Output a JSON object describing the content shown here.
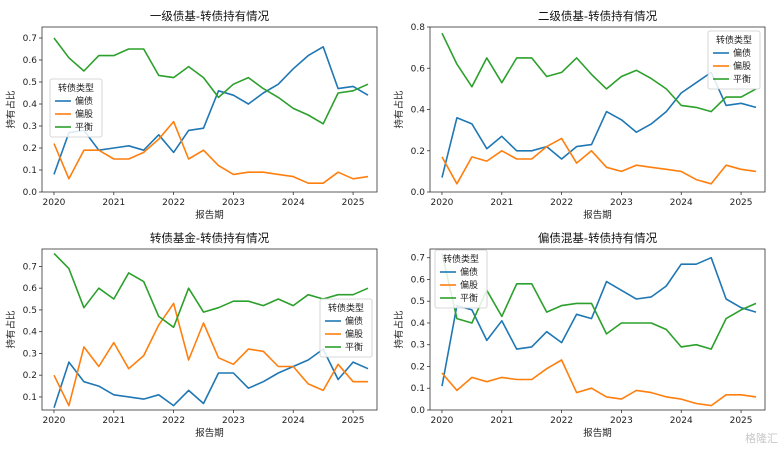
{
  "colors": {
    "偏债": "#1f77b4",
    "偏股": "#ff7f0e",
    "平衡": "#2ca02c"
  },
  "watermark": "格隆汇",
  "chart_data": [
    {
      "type": "line",
      "title": "一级债基-转债持有情况",
      "xlabel": "报告期",
      "ylabel": "持有占比",
      "xlim": [
        2019.8,
        2025.4
      ],
      "ylim": [
        0,
        0.75
      ],
      "xticks": [
        "2020",
        "2021",
        "2022",
        "2023",
        "2024",
        "2025"
      ],
      "yticks": [
        "0.0",
        "0.1",
        "0.2",
        "0.3",
        "0.4",
        "0.5",
        "0.6",
        "0.7"
      ],
      "legend_title": "转债类型",
      "legend_position": "center-left",
      "x": [
        2020.0,
        2020.25,
        2020.5,
        2020.75,
        2021.0,
        2021.25,
        2021.5,
        2021.75,
        2022.0,
        2022.25,
        2022.5,
        2022.75,
        2023.0,
        2023.25,
        2023.5,
        2023.75,
        2024.0,
        2024.25,
        2024.5,
        2024.75,
        2025.0,
        2025.25
      ],
      "series": [
        {
          "name": "偏债",
          "values": [
            0.08,
            0.27,
            0.28,
            0.19,
            0.2,
            0.21,
            0.19,
            0.26,
            0.18,
            0.28,
            0.29,
            0.46,
            0.44,
            0.4,
            0.45,
            0.49,
            0.56,
            0.62,
            0.66,
            0.47,
            0.48,
            0.44
          ]
        },
        {
          "name": "偏股",
          "values": [
            0.22,
            0.06,
            0.19,
            0.19,
            0.15,
            0.15,
            0.18,
            0.24,
            0.32,
            0.15,
            0.19,
            0.12,
            0.08,
            0.09,
            0.09,
            0.08,
            0.07,
            0.04,
            0.04,
            0.09,
            0.06,
            0.07
          ]
        },
        {
          "name": "平衡",
          "values": [
            0.7,
            0.61,
            0.55,
            0.62,
            0.62,
            0.65,
            0.65,
            0.53,
            0.52,
            0.57,
            0.52,
            0.43,
            0.49,
            0.52,
            0.47,
            0.43,
            0.38,
            0.35,
            0.31,
            0.45,
            0.46,
            0.49
          ]
        }
      ]
    },
    {
      "type": "line",
      "title": "二级债基-转债持有情况",
      "xlabel": "报告期",
      "ylabel": "持有占比",
      "xlim": [
        2019.8,
        2025.4
      ],
      "ylim": [
        0,
        0.8
      ],
      "xticks": [
        "2020",
        "2021",
        "2022",
        "2023",
        "2024",
        "2025"
      ],
      "yticks": [
        "0.0",
        "0.2",
        "0.4",
        "0.6",
        "0.8"
      ],
      "legend_title": "转债类型",
      "legend_position": "upper-right",
      "x": [
        2020.0,
        2020.25,
        2020.5,
        2020.75,
        2021.0,
        2021.25,
        2021.5,
        2021.75,
        2022.0,
        2022.25,
        2022.5,
        2022.75,
        2023.0,
        2023.25,
        2023.5,
        2023.75,
        2024.0,
        2024.25,
        2024.5,
        2024.75,
        2025.0,
        2025.25
      ],
      "series": [
        {
          "name": "偏债",
          "values": [
            0.07,
            0.36,
            0.33,
            0.21,
            0.27,
            0.2,
            0.2,
            0.22,
            0.16,
            0.22,
            0.23,
            0.39,
            0.35,
            0.29,
            0.33,
            0.39,
            0.48,
            0.53,
            0.58,
            0.42,
            0.43,
            0.41
          ]
        },
        {
          "name": "偏股",
          "values": [
            0.17,
            0.04,
            0.17,
            0.15,
            0.2,
            0.16,
            0.16,
            0.22,
            0.26,
            0.14,
            0.2,
            0.12,
            0.1,
            0.13,
            0.12,
            0.11,
            0.1,
            0.06,
            0.04,
            0.13,
            0.11,
            0.1
          ]
        },
        {
          "name": "平衡",
          "values": [
            0.77,
            0.62,
            0.51,
            0.65,
            0.53,
            0.65,
            0.65,
            0.56,
            0.58,
            0.65,
            0.57,
            0.5,
            0.56,
            0.59,
            0.55,
            0.5,
            0.42,
            0.41,
            0.39,
            0.46,
            0.46,
            0.5
          ]
        }
      ]
    },
    {
      "type": "line",
      "title": "转债基金-转债持有情况",
      "xlabel": "报告期",
      "ylabel": "持有占比",
      "xlim": [
        2019.8,
        2025.4
      ],
      "ylim": [
        0.04,
        0.78
      ],
      "xticks": [
        "2020",
        "2021",
        "2022",
        "2023",
        "2024",
        "2025"
      ],
      "yticks": [
        "0.1",
        "0.2",
        "0.3",
        "0.4",
        "0.5",
        "0.6",
        "0.7"
      ],
      "legend_title": "转债类型",
      "legend_position": "center-right",
      "x": [
        2020.0,
        2020.25,
        2020.5,
        2020.75,
        2021.0,
        2021.25,
        2021.5,
        2021.75,
        2022.0,
        2022.25,
        2022.5,
        2022.75,
        2023.0,
        2023.25,
        2023.5,
        2023.75,
        2024.0,
        2024.25,
        2024.5,
        2024.75,
        2025.0,
        2025.25
      ],
      "series": [
        {
          "name": "偏债",
          "values": [
            0.05,
            0.26,
            0.17,
            0.15,
            0.11,
            0.1,
            0.09,
            0.11,
            0.06,
            0.13,
            0.07,
            0.21,
            0.21,
            0.14,
            0.17,
            0.21,
            0.24,
            0.27,
            0.32,
            0.18,
            0.26,
            0.23
          ]
        },
        {
          "name": "偏股",
          "values": [
            0.2,
            0.06,
            0.33,
            0.24,
            0.35,
            0.23,
            0.29,
            0.43,
            0.53,
            0.27,
            0.44,
            0.28,
            0.25,
            0.32,
            0.31,
            0.24,
            0.24,
            0.16,
            0.13,
            0.25,
            0.17,
            0.17
          ]
        },
        {
          "name": "平衡",
          "values": [
            0.76,
            0.69,
            0.51,
            0.6,
            0.55,
            0.67,
            0.63,
            0.47,
            0.42,
            0.6,
            0.49,
            0.51,
            0.54,
            0.54,
            0.52,
            0.55,
            0.52,
            0.57,
            0.55,
            0.57,
            0.57,
            0.6
          ]
        }
      ]
    },
    {
      "type": "line",
      "title": "偏债混基-转债持有情况",
      "xlabel": "报告期",
      "ylabel": "持有占比",
      "xlim": [
        2019.8,
        2025.4
      ],
      "ylim": [
        0,
        0.74
      ],
      "xticks": [
        "2020",
        "2021",
        "2022",
        "2023",
        "2024",
        "2025"
      ],
      "yticks": [
        "0.0",
        "0.1",
        "0.2",
        "0.3",
        "0.4",
        "0.5",
        "0.6",
        "0.7"
      ],
      "legend_title": "转债类型",
      "legend_position": "upper-left",
      "x": [
        2020.0,
        2020.25,
        2020.5,
        2020.75,
        2021.0,
        2021.25,
        2021.5,
        2021.75,
        2022.0,
        2022.25,
        2022.5,
        2022.75,
        2023.0,
        2023.25,
        2023.5,
        2023.75,
        2024.0,
        2024.25,
        2024.5,
        2024.75,
        2025.0,
        2025.25
      ],
      "series": [
        {
          "name": "偏债",
          "values": [
            0.11,
            0.48,
            0.46,
            0.32,
            0.41,
            0.28,
            0.29,
            0.36,
            0.31,
            0.44,
            0.42,
            0.59,
            0.55,
            0.51,
            0.52,
            0.57,
            0.67,
            0.67,
            0.7,
            0.51,
            0.47,
            0.45
          ]
        },
        {
          "name": "偏股",
          "values": [
            0.17,
            0.09,
            0.15,
            0.13,
            0.15,
            0.14,
            0.14,
            0.19,
            0.23,
            0.08,
            0.1,
            0.06,
            0.05,
            0.09,
            0.08,
            0.06,
            0.05,
            0.03,
            0.02,
            0.07,
            0.07,
            0.06
          ]
        },
        {
          "name": "平衡",
          "values": [
            0.72,
            0.42,
            0.4,
            0.55,
            0.43,
            0.58,
            0.58,
            0.45,
            0.48,
            0.49,
            0.49,
            0.35,
            0.4,
            0.4,
            0.4,
            0.37,
            0.29,
            0.3,
            0.28,
            0.42,
            0.46,
            0.49
          ]
        }
      ]
    }
  ]
}
